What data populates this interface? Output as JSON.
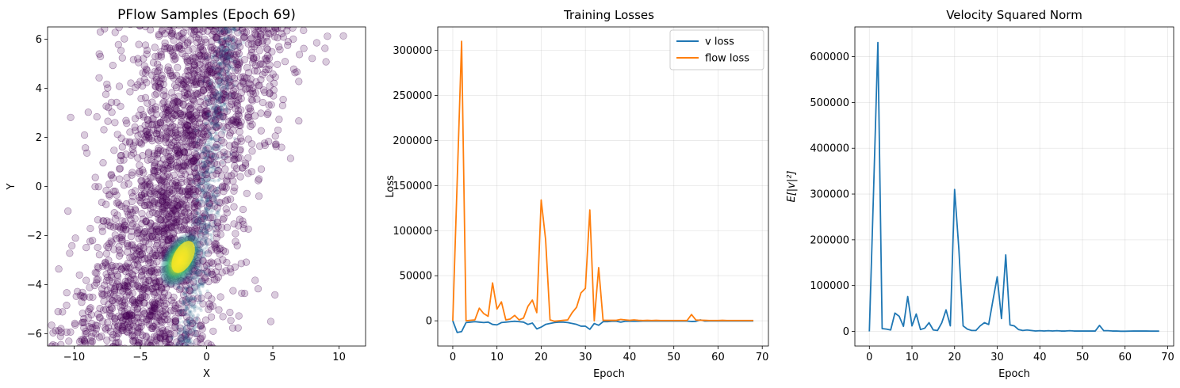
{
  "chart_data": [
    {
      "type": "scatter",
      "title": "PFlow Samples (Epoch 69)",
      "xlabel": "X",
      "ylabel": "Y",
      "xlim": [
        -12,
        12
      ],
      "ylim": [
        -6.5,
        6.5
      ],
      "xticks": [
        -10,
        -5,
        0,
        5,
        10
      ],
      "yticks": [
        -6,
        -4,
        -2,
        0,
        2,
        4,
        6
      ],
      "grid": false,
      "colormap": "viridis",
      "point_color": "#440154",
      "point_alpha": 0.2,
      "dense_core": {
        "x": -2.0,
        "y": -3.0
      },
      "band_description": "diagonal band from lower-left to upper-right, broad spread around a narrow ridge near x=0"
    },
    {
      "type": "line",
      "title": "Training Losses",
      "xlabel": "Epoch",
      "ylabel": "Loss",
      "xlim": [
        -3.4,
        71.4
      ],
      "ylim": [
        -28000,
        326000
      ],
      "xticks": [
        0,
        10,
        20,
        30,
        40,
        50,
        60,
        70
      ],
      "yticks": [
        0,
        50000,
        100000,
        150000,
        200000,
        250000,
        300000
      ],
      "grid": true,
      "legend": "top-right",
      "series": [
        {
          "name": "v loss",
          "color": "#1f77b4",
          "x": [
            0,
            1,
            2,
            3,
            4,
            5,
            6,
            7,
            8,
            9,
            10,
            11,
            12,
            13,
            14,
            15,
            16,
            17,
            18,
            19,
            20,
            21,
            22,
            23,
            24,
            25,
            26,
            27,
            28,
            29,
            30,
            31,
            32,
            33,
            34,
            35,
            36,
            37,
            38,
            39,
            40,
            41,
            42,
            43,
            44,
            45,
            46,
            47,
            48,
            49,
            50,
            51,
            52,
            53,
            54,
            55,
            56,
            57,
            58,
            59,
            60,
            61,
            62,
            63,
            64,
            65,
            66,
            67,
            68
          ],
          "values": [
            0,
            -13000,
            -12000,
            -2000,
            -1500,
            -1000,
            -1500,
            -2000,
            -1500,
            -4000,
            -4500,
            -2000,
            -1500,
            -1000,
            -500,
            -1000,
            -1500,
            -4000,
            -2500,
            -9000,
            -7000,
            -4000,
            -3000,
            -2000,
            -1500,
            -1500,
            -2000,
            -3000,
            -4000,
            -6000,
            -6000,
            -9500,
            -3000,
            -5000,
            -1000,
            -1000,
            -500,
            -500,
            -1500,
            -500,
            -500,
            -500,
            -500,
            -300,
            -300,
            -300,
            -300,
            -300,
            -300,
            -300,
            -300,
            -300,
            -300,
            -300,
            -800,
            -600,
            1000,
            -300,
            -200,
            -200,
            -200,
            -200,
            -200,
            -200,
            -200,
            -200,
            -200,
            -200,
            -200
          ]
        },
        {
          "name": "flow loss",
          "color": "#ff7f0e",
          "x": [
            0,
            1,
            2,
            3,
            4,
            5,
            6,
            7,
            8,
            9,
            10,
            11,
            12,
            13,
            14,
            15,
            16,
            17,
            18,
            19,
            20,
            21,
            22,
            23,
            24,
            25,
            26,
            27,
            28,
            29,
            30,
            31,
            32,
            33,
            34,
            35,
            36,
            37,
            38,
            39,
            40,
            41,
            42,
            43,
            44,
            45,
            46,
            47,
            48,
            49,
            50,
            51,
            52,
            53,
            54,
            55,
            56,
            57,
            58,
            59,
            60,
            61,
            62,
            63,
            64,
            65,
            66,
            67,
            68
          ],
          "values": [
            0,
            155000,
            310000,
            0,
            500,
            1000,
            14000,
            8000,
            5000,
            42000,
            13000,
            21000,
            1000,
            2000,
            6000,
            1000,
            3000,
            16000,
            23000,
            9000,
            134000,
            90000,
            1000,
            -500,
            0,
            500,
            1000,
            9000,
            15000,
            31000,
            36000,
            123000,
            0,
            59000,
            500,
            500,
            500,
            500,
            1500,
            1000,
            500,
            1000,
            500,
            300,
            500,
            300,
            500,
            300,
            300,
            300,
            300,
            300,
            300,
            300,
            7000,
            800,
            600,
            500,
            300,
            300,
            300,
            500,
            300,
            300,
            300,
            300,
            300,
            300,
            300
          ]
        }
      ]
    },
    {
      "type": "line",
      "title": "Velocity Squared Norm",
      "xlabel": "Epoch",
      "ylabel": "E[|v|²]",
      "xlim": [
        -3.4,
        71.4
      ],
      "ylim": [
        -32000,
        665000
      ],
      "xticks": [
        0,
        10,
        20,
        30,
        40,
        50,
        60,
        70
      ],
      "yticks": [
        0,
        100000,
        200000,
        300000,
        400000,
        500000,
        600000
      ],
      "grid": true,
      "series": [
        {
          "color": "#1f77b4",
          "x": [
            0,
            1,
            2,
            3,
            4,
            5,
            6,
            7,
            8,
            9,
            10,
            11,
            12,
            13,
            14,
            15,
            16,
            17,
            18,
            19,
            20,
            21,
            22,
            23,
            24,
            25,
            26,
            27,
            28,
            29,
            30,
            31,
            32,
            33,
            34,
            35,
            36,
            37,
            38,
            39,
            40,
            41,
            42,
            43,
            44,
            45,
            46,
            47,
            48,
            49,
            50,
            51,
            52,
            53,
            54,
            55,
            56,
            57,
            58,
            59,
            60,
            61,
            62,
            63,
            64,
            65,
            66,
            67,
            68
          ],
          "values": [
            0,
            310000,
            631000,
            6000,
            5000,
            3000,
            40000,
            33000,
            11000,
            76000,
            12000,
            38000,
            4000,
            7000,
            19000,
            3000,
            2000,
            19000,
            47000,
            12000,
            310000,
            180000,
            12000,
            5000,
            2000,
            2000,
            12000,
            19000,
            15000,
            68000,
            119000,
            28000,
            167000,
            14000,
            12000,
            4000,
            2000,
            3000,
            2000,
            800,
            1500,
            800,
            1500,
            800,
            1500,
            800,
            800,
            1500,
            800,
            800,
            800,
            800,
            800,
            800,
            13000,
            1500,
            1500,
            800,
            800,
            300,
            300,
            500,
            800,
            800,
            800,
            800,
            500,
            500,
            500
          ]
        }
      ]
    }
  ]
}
